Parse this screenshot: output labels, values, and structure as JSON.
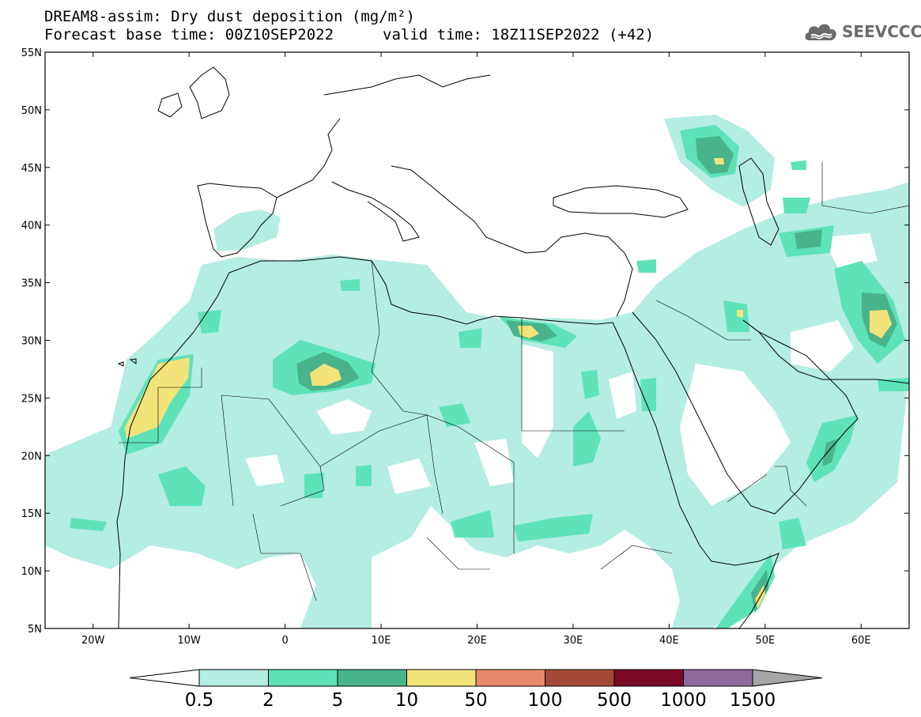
{
  "header": {
    "title_line1": "DREAM8-assim: Dry dust deposition (mg/m²)",
    "title_line2": "Forecast base time: 00Z10SEP2022",
    "valid_time": "valid time: 18Z11SEP2022 (+42)"
  },
  "logo": {
    "text": "SEEVCCC",
    "icon": "cloud-logo-icon",
    "color": "#6b6b6b"
  },
  "map": {
    "lon_range": [
      -25,
      65
    ],
    "lat_range": [
      5,
      55
    ],
    "lat_ticks": [
      "55N",
      "50N",
      "45N",
      "40N",
      "35N",
      "30N",
      "25N",
      "20N",
      "15N",
      "10N",
      "5N"
    ],
    "lon_ticks": [
      "20W",
      "10W",
      "0",
      "10E",
      "20E",
      "30E",
      "40E",
      "50E",
      "60E"
    ]
  },
  "colorbar": {
    "labels": [
      "0.5",
      "2",
      "5",
      "10",
      "50",
      "100",
      "500",
      "1000",
      "1500"
    ],
    "colors": [
      "#b4ede2",
      "#5ee3b9",
      "#49b48c",
      "#f2e37b",
      "#e9896b",
      "#a44938",
      "#7a0a28",
      "#8e6b9c"
    ],
    "under_color": "#ffffff",
    "over_color": "#a6a6a6"
  }
}
